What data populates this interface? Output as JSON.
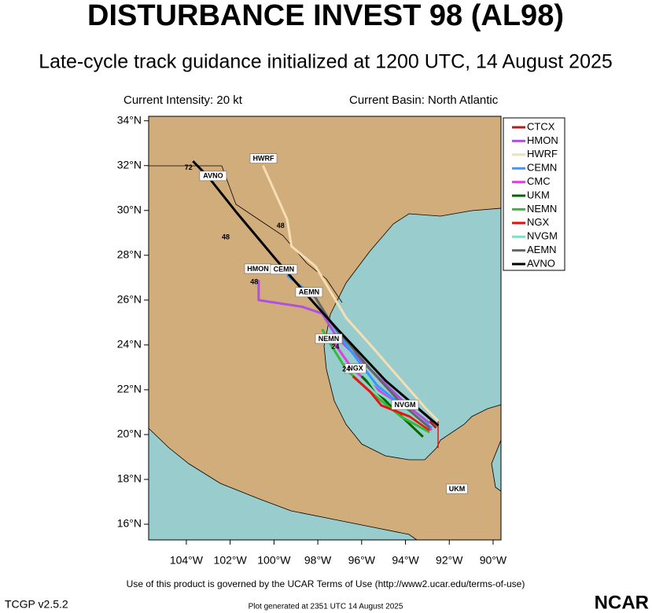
{
  "header": {
    "title": "DISTURBANCE INVEST 98 (AL98)",
    "subtitle": "Late-cycle track guidance initialized at 1200 UTC, 14 August 2025",
    "intensity": "Current Intensity: 20 kt",
    "basin": "Current Basin: North Atlantic"
  },
  "map": {
    "lonlim": [
      -105.72,
      -89.64
    ],
    "latlim": [
      15.3,
      34.2
    ],
    "lonticks": [
      {
        "value": -104,
        "label": "104°W"
      },
      {
        "value": -102,
        "label": "102°W"
      },
      {
        "value": -100,
        "label": "100°W"
      },
      {
        "value": -98,
        "label": "98°W"
      },
      {
        "value": -96,
        "label": "96°W"
      },
      {
        "value": -94,
        "label": "94°W"
      },
      {
        "value": -92,
        "label": "92°W"
      },
      {
        "value": -90,
        "label": "90°W"
      }
    ],
    "latticks": [
      {
        "value": 34,
        "label": "34°N"
      },
      {
        "value": 32,
        "label": "32°N"
      },
      {
        "value": 30,
        "label": "30°N"
      },
      {
        "value": 28,
        "label": "28°N"
      },
      {
        "value": 26,
        "label": "26°N"
      },
      {
        "value": 24,
        "label": "24°N"
      },
      {
        "value": 22,
        "label": "22°N"
      },
      {
        "value": 20,
        "label": "20°N"
      },
      {
        "value": 18,
        "label": "18°N"
      },
      {
        "value": 16,
        "label": "16°N"
      }
    ],
    "tracks": [
      {
        "name": "CTCX",
        "color": "#aa2222",
        "lon": [
          -92.6,
          -92.9
        ],
        "lat": [
          20.3,
          20.6
        ]
      },
      {
        "name": "HMON",
        "color": "#b050e0",
        "lon": [
          -92.9,
          -93.8,
          -95.6,
          -97.1,
          -97.8,
          -98.7,
          -100.7,
          -100.7
        ],
        "lat": [
          20.5,
          21.2,
          22.9,
          24.3,
          25.4,
          25.7,
          26.0,
          26.9
        ],
        "label_lon": -100.73,
        "label_lat": 27.4
      },
      {
        "name": "HWRF",
        "color": "#f5deb3",
        "lon": [
          -92.5,
          -93.1,
          -95.6,
          -96.7,
          -98.1,
          -99.2,
          -99.4,
          -100.5
        ],
        "lat": [
          20.6,
          21.2,
          24.0,
          25.2,
          27.5,
          28.4,
          29.6,
          32.0
        ],
        "label_lon": -100.48,
        "label_lat": 32.32
      },
      {
        "name": "CEMN",
        "color": "#3399ff",
        "lon": [
          -92.8,
          -93.8,
          -95.3,
          -96.7,
          -97.4,
          -98.1,
          -99.4
        ],
        "lat": [
          20.3,
          21.0,
          22.2,
          24.0,
          25.0,
          26.1,
          27.1
        ],
        "label_lon": -99.55,
        "label_lat": 27.37
      },
      {
        "name": "CMC",
        "color": "#e040e0",
        "lon": [
          -92.8,
          -94.6,
          -96.4,
          -97.4
        ],
        "lat": [
          20.2,
          21.5,
          22.9,
          24.3
        ]
      },
      {
        "name": "UKM",
        "color": "#006600",
        "lon": [
          -93.2,
          -94.6,
          -96.0
        ],
        "lat": [
          19.9,
          21.2,
          22.6
        ],
        "label_lon": -91.65,
        "label_lat": 17.58
      },
      {
        "name": "NEMN",
        "color": "#33bb33",
        "lon": [
          -92.9,
          -94.2,
          -95.6,
          -96.7,
          -97.4,
          -97.8
        ],
        "lat": [
          20.1,
          20.8,
          21.9,
          22.9,
          24.0,
          24.7
        ],
        "label_lon": -97.5,
        "label_lat": 24.28
      },
      {
        "name": "NGX",
        "color": "#ee1111",
        "lon": [
          -92.9,
          -93.8,
          -95.1,
          -95.6,
          -96.4
        ],
        "lat": [
          20.2,
          20.8,
          21.3,
          21.9,
          22.6
        ],
        "label_lon": -96.28,
        "label_lat": 22.95
      },
      {
        "name": "NVGM",
        "color": "#7fe0c0",
        "lon": [
          -92.9,
          -94.2,
          -95.3,
          -96.0
        ],
        "lat": [
          20.3,
          21.2,
          21.9,
          22.9
        ],
        "label_lon": -94.02,
        "label_lat": 21.33
      },
      {
        "name": "AEMN",
        "color": "#666666",
        "lon": [
          -92.9,
          -94.2,
          -95.6,
          -97.4,
          -98.1,
          -98.3
        ],
        "lat": [
          20.3,
          21.4,
          22.9,
          25.0,
          26.1,
          26.4
        ],
        "label_lon": -98.4,
        "label_lat": 26.35
      },
      {
        "name": "AVNO",
        "color": "#000000",
        "lon": [
          -92.5,
          -93.1,
          -94.9,
          -97.1,
          -98.2,
          -99.9,
          -101.7,
          -103.0,
          -103.7
        ],
        "lat": [
          20.4,
          20.9,
          22.4,
          24.7,
          25.9,
          27.8,
          29.9,
          31.5,
          32.2
        ],
        "label_lon": -102.78,
        "label_lat": 31.54
      }
    ],
    "annotations": [
      {
        "text": "72",
        "lon": -103.9,
        "lat": 31.9
      },
      {
        "text": "48",
        "lon": -102.2,
        "lat": 28.8
      },
      {
        "text": "48",
        "lon": -99.7,
        "lat": 29.3
      },
      {
        "text": "48",
        "lon": -100.9,
        "lat": 26.8
      },
      {
        "text": "24",
        "lon": -96.7,
        "lat": 22.9
      },
      {
        "text": "24",
        "lon": -97.2,
        "lat": 23.9
      }
    ]
  },
  "footer": {
    "terms": "Use of this product is governed by the UCAR Terms of Use (http://www2.ucar.edu/terms-of-use)",
    "version": "TCGP v2.5.2",
    "generated": "Plot generated at 2351 UTC   14 August 2025",
    "logo": "NCAR"
  }
}
